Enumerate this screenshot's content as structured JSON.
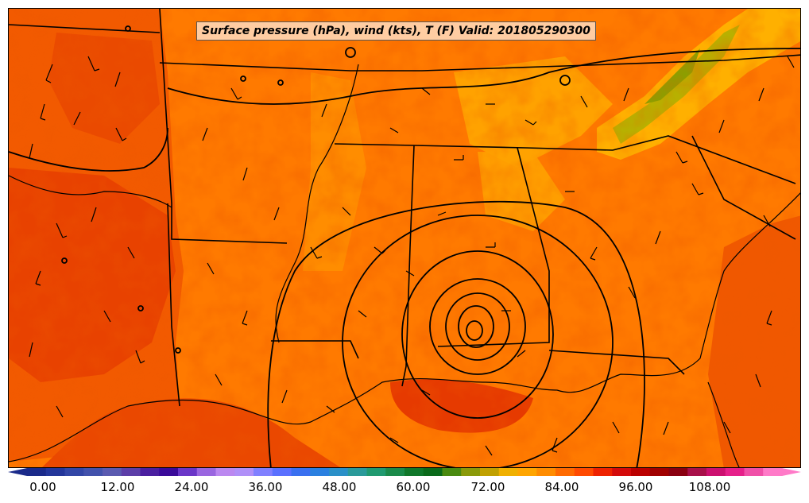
{
  "title": "Surface pressure (hPa), wind (kts), T (F) Valid: 201805290300",
  "colorbar": {
    "min": 0,
    "max": 118,
    "tick_labels": [
      "0.00",
      "12.00",
      "24.00",
      "36.00",
      "48.00",
      "60.00",
      "72.00",
      "84.00",
      "96.00",
      "108.00"
    ],
    "colors": [
      "#1a2a8a",
      "#23369a",
      "#3246a6",
      "#4252ac",
      "#5a5ab0",
      "#5c3ea8",
      "#4a1fa0",
      "#3a0a9a",
      "#6a36c8",
      "#9a66e0",
      "#bb88f0",
      "#b090f8",
      "#8080ff",
      "#5a70ff",
      "#3a70f0",
      "#2a80e0",
      "#2a90c8",
      "#2a9a9a",
      "#209a70",
      "#1a8a4a",
      "#10782a",
      "#0a6a1a",
      "#4a8a10",
      "#8a9a0a",
      "#c0a000",
      "#f0b000",
      "#ffa500",
      "#ff8c00",
      "#ff6a00",
      "#ff4a00",
      "#ee2200",
      "#d40a0a",
      "#bb0000",
      "#a00000",
      "#8a0010",
      "#a8104a",
      "#cc1070",
      "#e6208a",
      "#f050a8",
      "#ff7ac8"
    ]
  },
  "map": {
    "field": "temperature",
    "dominant_colors": {
      "warm": "#ff7a00",
      "hot": "#e63a00",
      "mild": "#ffa200",
      "cool": "#b8b000"
    }
  }
}
